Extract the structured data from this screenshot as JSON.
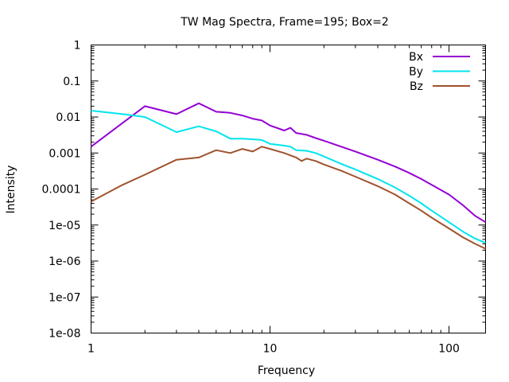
{
  "chart_data": {
    "type": "line",
    "title": "TW Mag Spectra, Frame=195; Box=2",
    "xlabel": "Frequency",
    "ylabel": "Intensity",
    "xscale": "log",
    "yscale": "log",
    "xlim": [
      1,
      160
    ],
    "ylim": [
      1e-08,
      1
    ],
    "x_ticks": [
      {
        "value": 1,
        "label": "1"
      },
      {
        "value": 10,
        "label": "10"
      },
      {
        "value": 100,
        "label": "100"
      }
    ],
    "y_ticks": [
      {
        "value": 1,
        "label": "1"
      },
      {
        "value": 0.1,
        "label": "0.1"
      },
      {
        "value": 0.01,
        "label": "0.01"
      },
      {
        "value": 0.001,
        "label": "0.001"
      },
      {
        "value": 0.0001,
        "label": "0.0001"
      },
      {
        "value": 1e-05,
        "label": "1e-05"
      },
      {
        "value": 1e-06,
        "label": "1e-06"
      },
      {
        "value": 1e-07,
        "label": "1e-07"
      },
      {
        "value": 1e-08,
        "label": "1e-08"
      }
    ],
    "legend_position": "top-right",
    "grid": false,
    "series": [
      {
        "name": "Bx",
        "color": "#9400d3",
        "points": [
          [
            1,
            0.0015
          ],
          [
            2,
            0.02
          ],
          [
            3,
            0.012
          ],
          [
            4,
            0.024
          ],
          [
            5,
            0.014
          ],
          [
            6,
            0.013
          ],
          [
            7,
            0.011
          ],
          [
            8,
            0.009
          ],
          [
            9,
            0.008
          ],
          [
            10,
            0.0058
          ],
          [
            12,
            0.0042
          ],
          [
            13,
            0.005
          ],
          [
            14,
            0.0036
          ],
          [
            16,
            0.0032
          ],
          [
            18,
            0.0026
          ],
          [
            20,
            0.0022
          ],
          [
            25,
            0.0015
          ],
          [
            30,
            0.0011
          ],
          [
            40,
            0.00065
          ],
          [
            50,
            0.00042
          ],
          [
            60,
            0.00028
          ],
          [
            70,
            0.00019
          ],
          [
            80,
            0.00013
          ],
          [
            100,
            7e-05
          ],
          [
            120,
            3.5e-05
          ],
          [
            140,
            1.8e-05
          ],
          [
            160,
            1.2e-05
          ]
        ]
      },
      {
        "name": "By",
        "color": "#00e5ee",
        "points": [
          [
            1,
            0.015
          ],
          [
            1.5,
            0.012
          ],
          [
            2,
            0.01
          ],
          [
            3,
            0.0038
          ],
          [
            4,
            0.0055
          ],
          [
            5,
            0.004
          ],
          [
            6,
            0.0025
          ],
          [
            7,
            0.0025
          ],
          [
            8,
            0.0024
          ],
          [
            9,
            0.0023
          ],
          [
            10,
            0.0018
          ],
          [
            12,
            0.0016
          ],
          [
            13,
            0.0015
          ],
          [
            14,
            0.0012
          ],
          [
            16,
            0.00115
          ],
          [
            18,
            0.001
          ],
          [
            20,
            0.0008
          ],
          [
            25,
            0.0005
          ],
          [
            30,
            0.00035
          ],
          [
            40,
            0.00019
          ],
          [
            50,
            0.00011
          ],
          [
            60,
            6.5e-05
          ],
          [
            70,
            4e-05
          ],
          [
            80,
            2.5e-05
          ],
          [
            100,
            1.2e-05
          ],
          [
            120,
            6.5e-06
          ],
          [
            140,
            4.2e-06
          ],
          [
            160,
            3.2e-06
          ]
        ]
      },
      {
        "name": "Bz",
        "color": "#a0522d",
        "points": [
          [
            1,
            4.5e-05
          ],
          [
            1.5,
            0.00013
          ],
          [
            2,
            0.00025
          ],
          [
            3,
            0.00065
          ],
          [
            4,
            0.00075
          ],
          [
            5,
            0.0012
          ],
          [
            6,
            0.001
          ],
          [
            7,
            0.0013
          ],
          [
            8,
            0.0011
          ],
          [
            9,
            0.0015
          ],
          [
            10,
            0.0013
          ],
          [
            12,
            0.001
          ],
          [
            14,
            0.00075
          ],
          [
            15,
            0.0006
          ],
          [
            16,
            0.0007
          ],
          [
            18,
            0.0006
          ],
          [
            20,
            0.00048
          ],
          [
            25,
            0.00032
          ],
          [
            30,
            0.00022
          ],
          [
            40,
            0.00012
          ],
          [
            50,
            7e-05
          ],
          [
            60,
            4e-05
          ],
          [
            70,
            2.5e-05
          ],
          [
            80,
            1.6e-05
          ],
          [
            100,
            8e-06
          ],
          [
            120,
            4.5e-06
          ],
          [
            140,
            3e-06
          ],
          [
            160,
            2.2e-06
          ]
        ]
      }
    ]
  }
}
